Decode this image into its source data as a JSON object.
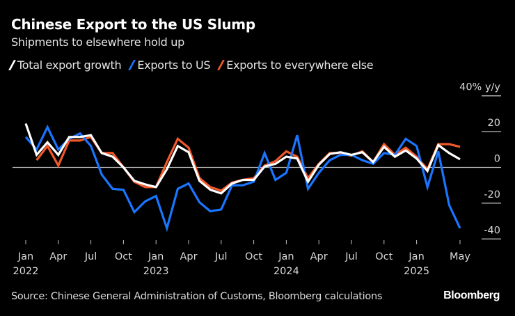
{
  "header": {
    "title": "Chinese Export to the US Slump",
    "subtitle": "Shipments to elsewhere hold up"
  },
  "legend": [
    {
      "label": "Total export growth",
      "color": "#ffffff"
    },
    {
      "label": "Exports to US",
      "color": "#1a75ff"
    },
    {
      "label": "Exports to everywhere else",
      "color": "#f2592a"
    }
  ],
  "footer": {
    "source": "Source: Chinese General Administration of Customs, Bloomberg calculations",
    "brand": "Bloomberg"
  },
  "chart_data": {
    "type": "line",
    "title": "Chinese Export to the US Slump",
    "subtitle": "Shipments to elsewhere hold up",
    "xlabel": "",
    "ylabel": "40% y/y",
    "ylim": [
      -45,
      40
    ],
    "y_ticks": [
      {
        "value": 40,
        "label": "40% y/y"
      },
      {
        "value": 20,
        "label": "20"
      },
      {
        "value": 0,
        "label": "0"
      },
      {
        "value": -20,
        "label": "-20"
      },
      {
        "value": -40,
        "label": "-40"
      }
    ],
    "x_ticks": [
      {
        "month": 0,
        "label": "Jan",
        "year": "2022"
      },
      {
        "month": 3,
        "label": "Apr",
        "year": ""
      },
      {
        "month": 6,
        "label": "Jul",
        "year": ""
      },
      {
        "month": 9,
        "label": "Oct",
        "year": ""
      },
      {
        "month": 12,
        "label": "Jan",
        "year": "2023"
      },
      {
        "month": 15,
        "label": "Apr",
        "year": ""
      },
      {
        "month": 18,
        "label": "Jul",
        "year": ""
      },
      {
        "month": 21,
        "label": "Oct",
        "year": ""
      },
      {
        "month": 24,
        "label": "Jan",
        "year": "2024"
      },
      {
        "month": 27,
        "label": "Apr",
        "year": ""
      },
      {
        "month": 30,
        "label": "Jul",
        "year": ""
      },
      {
        "month": 33,
        "label": "Oct",
        "year": ""
      },
      {
        "month": 36,
        "label": "Jan",
        "year": "2025"
      },
      {
        "month": 40,
        "label": "May",
        "year": ""
      }
    ],
    "x": [
      "2022-01",
      "2022-02",
      "2022-03",
      "2022-04",
      "2022-05",
      "2022-06",
      "2022-07",
      "2022-08",
      "2022-09",
      "2022-10",
      "2022-11",
      "2022-12",
      "2023-01",
      "2023-02",
      "2023-03",
      "2023-04",
      "2023-05",
      "2023-06",
      "2023-07",
      "2023-08",
      "2023-09",
      "2023-10",
      "2023-11",
      "2023-12",
      "2024-01",
      "2024-02",
      "2024-03",
      "2024-04",
      "2024-05",
      "2024-06",
      "2024-07",
      "2024-08",
      "2024-09",
      "2024-10",
      "2024-11",
      "2024-12",
      "2025-01",
      "2025-02",
      "2025-03",
      "2025-04",
      "2025-05"
    ],
    "grid": false,
    "zero_line": true,
    "legend_position": "top-left",
    "series": [
      {
        "name": "Exports to everywhere else",
        "color": "#f2592a",
        "values": [
          null,
          4,
          12,
          1,
          15,
          15,
          17,
          8,
          8,
          0,
          -8,
          -11,
          -11,
          3,
          16,
          11,
          -6,
          -11,
          -13,
          -8.5,
          -7,
          -6,
          1,
          3.5,
          9,
          6,
          -6,
          2,
          8,
          8,
          6.5,
          9,
          3,
          13,
          7,
          11,
          6,
          -1,
          13,
          13,
          11.5
        ]
      },
      {
        "name": "Exports to US",
        "color": "#1a75ff",
        "values": [
          17,
          10,
          22.5,
          10,
          16,
          19,
          12,
          -4,
          -12,
          -12.5,
          -25,
          -19,
          -16,
          -34,
          -12,
          -9,
          -19.5,
          -24.5,
          -23.5,
          -10,
          -10,
          -8,
          8,
          -7,
          -3,
          18,
          -12,
          -3,
          4,
          7,
          7,
          4,
          2,
          8,
          7,
          16,
          12,
          -11,
          9,
          -21,
          -34
        ]
      },
      {
        "name": "Total export growth",
        "color": "#ffffff",
        "values": [
          24.5,
          7,
          14,
          7,
          17,
          17,
          18,
          8,
          6,
          0,
          -7.5,
          -9.5,
          -11,
          -1,
          12,
          8.5,
          -7.5,
          -12.5,
          -14.5,
          -9,
          -7,
          -7,
          0.5,
          2,
          6,
          5,
          -8,
          1.5,
          7.5,
          8.5,
          7,
          8.5,
          3,
          11.5,
          6,
          9.5,
          5,
          -2,
          12.5,
          8,
          4.5
        ]
      }
    ]
  }
}
